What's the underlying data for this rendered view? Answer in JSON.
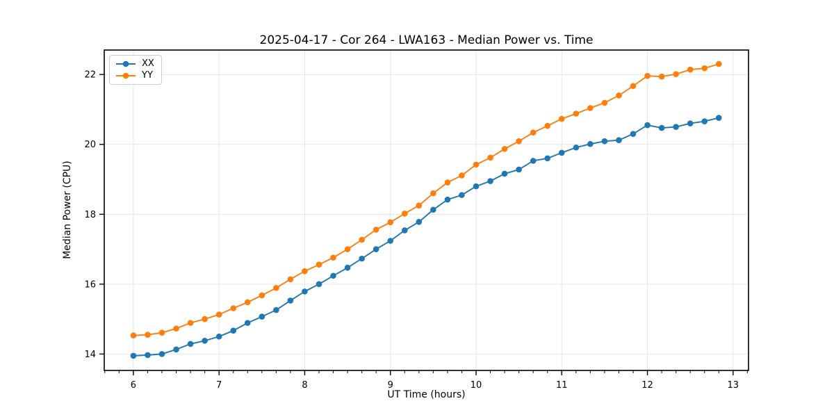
{
  "chart_data": {
    "type": "line",
    "title": "2025-04-17 - Cor 264 - LWA163 - Median Power vs. Time",
    "xlabel": "UT Time (hours)",
    "ylabel": "Median Power (CPU)",
    "xlim": [
      5.66,
      13.18
    ],
    "ylim": [
      13.53,
      22.7
    ],
    "xticks": [
      6,
      7,
      8,
      9,
      10,
      11,
      12,
      13
    ],
    "yticks": [
      14,
      16,
      18,
      20,
      22
    ],
    "x_minor_divisions": 6,
    "grid": true,
    "grid_color": "#e6e6e6",
    "legend_position": "upper-left",
    "x": [
      6.0,
      6.167,
      6.333,
      6.5,
      6.667,
      6.833,
      7.0,
      7.167,
      7.333,
      7.5,
      7.667,
      7.833,
      8.0,
      8.167,
      8.333,
      8.5,
      8.667,
      8.833,
      9.0,
      9.167,
      9.333,
      9.5,
      9.667,
      9.833,
      10.0,
      10.167,
      10.333,
      10.5,
      10.667,
      10.833,
      11.0,
      11.167,
      11.333,
      11.5,
      11.667,
      11.833,
      12.0,
      12.167,
      12.333,
      12.5,
      12.667,
      12.833
    ],
    "series": [
      {
        "name": "XX",
        "color": "#1f77b4",
        "values": [
          13.95,
          13.97,
          14.0,
          14.13,
          14.29,
          14.38,
          14.5,
          14.67,
          14.89,
          15.07,
          15.26,
          15.53,
          15.79,
          16.0,
          16.24,
          16.47,
          16.73,
          17.0,
          17.24,
          17.54,
          17.78,
          18.13,
          18.42,
          18.55,
          18.8,
          18.95,
          19.16,
          19.28,
          19.53,
          19.6,
          19.76,
          19.91,
          20.01,
          20.09,
          20.12,
          20.3,
          20.55,
          20.47,
          20.5,
          20.6,
          20.66,
          20.76
        ]
      },
      {
        "name": "YY",
        "color": "#ff7f0e",
        "values": [
          14.53,
          14.55,
          14.61,
          14.73,
          14.89,
          15.0,
          15.13,
          15.31,
          15.48,
          15.68,
          15.89,
          16.14,
          16.37,
          16.56,
          16.76,
          17.0,
          17.27,
          17.56,
          17.77,
          18.02,
          18.25,
          18.6,
          18.91,
          19.11,
          19.42,
          19.62,
          19.87,
          20.09,
          20.34,
          20.53,
          20.73,
          20.88,
          21.04,
          21.19,
          21.4,
          21.67,
          21.96,
          21.94,
          22.01,
          22.14,
          22.18,
          22.3
        ]
      }
    ]
  }
}
